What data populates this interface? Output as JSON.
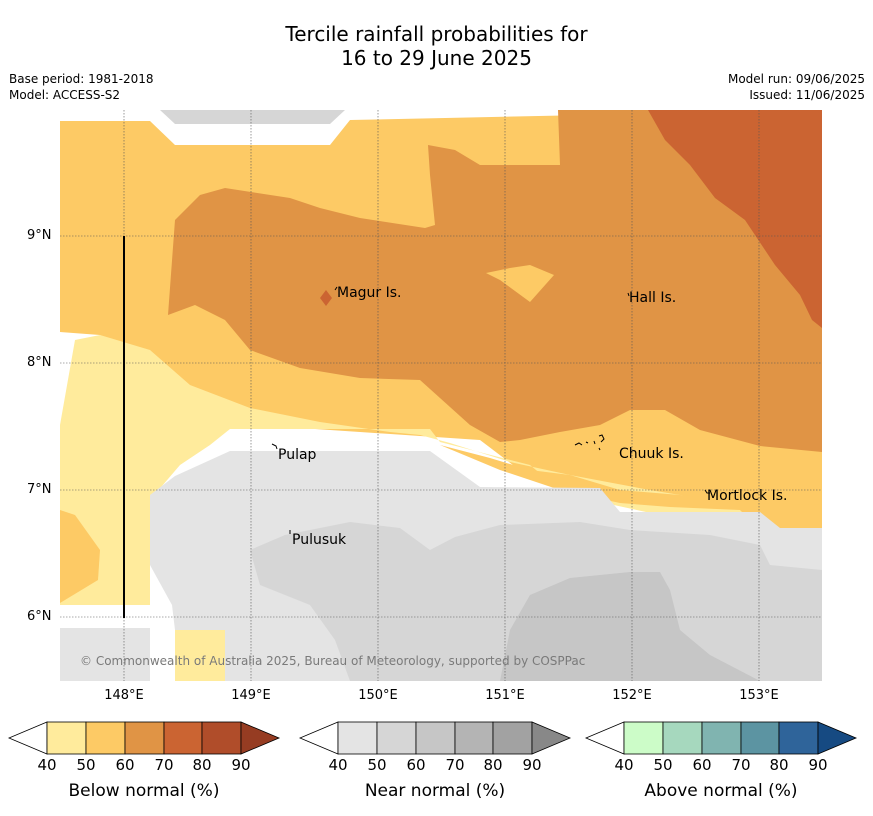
{
  "title": {
    "line1": "Tercile rainfall probabilities for",
    "line2": "16 to 29 June 2025"
  },
  "meta_left": {
    "base_period": "Base period: 1981-2018",
    "model": "Model: ACCESS-S2"
  },
  "meta_right": {
    "model_run": "Model run: 09/06/2025",
    "issued": "Issued: 11/06/2025"
  },
  "axes": {
    "latitude_labels": [
      "9°N",
      "8°N",
      "7°N",
      "6°N"
    ],
    "longitude_labels": [
      "148°E",
      "149°E",
      "150°E",
      "151°E",
      "152°E",
      "153°E"
    ]
  },
  "places": {
    "magur": "Magur Is.",
    "hall": "Hall Is.",
    "pulap": "Pulap",
    "chuuk": "Chuuk Is.",
    "mortlock": "Mortlock Is.",
    "pulusuk": "Pulusuk"
  },
  "copyright": "© Commonwealth of Australia 2025, Bureau of Meteorology, supported by COSPPac",
  "legends": [
    {
      "title": "Below normal (%)",
      "ticks": [
        "40",
        "50",
        "60",
        "70",
        "80",
        "90"
      ],
      "colors": [
        "#ffeb9c",
        "#fdca65",
        "#e09445",
        "#cb6432",
        "#b04d2a",
        "#963c22"
      ]
    },
    {
      "title": "Near normal (%)",
      "ticks": [
        "40",
        "50",
        "60",
        "70",
        "80",
        "90"
      ],
      "colors": [
        "#e4e4e4",
        "#d6d6d6",
        "#c6c6c6",
        "#b4b4b4",
        "#a2a2a2",
        "#888888"
      ]
    },
    {
      "title": "Above normal (%)",
      "ticks": [
        "40",
        "50",
        "60",
        "70",
        "80",
        "90"
      ],
      "colors": [
        "#ccfcc8",
        "#a6d8be",
        "#80b4b0",
        "#5c94a2",
        "#2f649a",
        "#164a82"
      ]
    }
  ],
  "colors": {
    "below_40_50": "#ffeb9c",
    "below_50_60": "#fdca65",
    "below_60_70": "#e09445",
    "below_70_80": "#cb6432",
    "near_40_50": "#e4e4e4",
    "near_50_60": "#d6d6d6",
    "near_60_70": "#c6c6c6"
  }
}
